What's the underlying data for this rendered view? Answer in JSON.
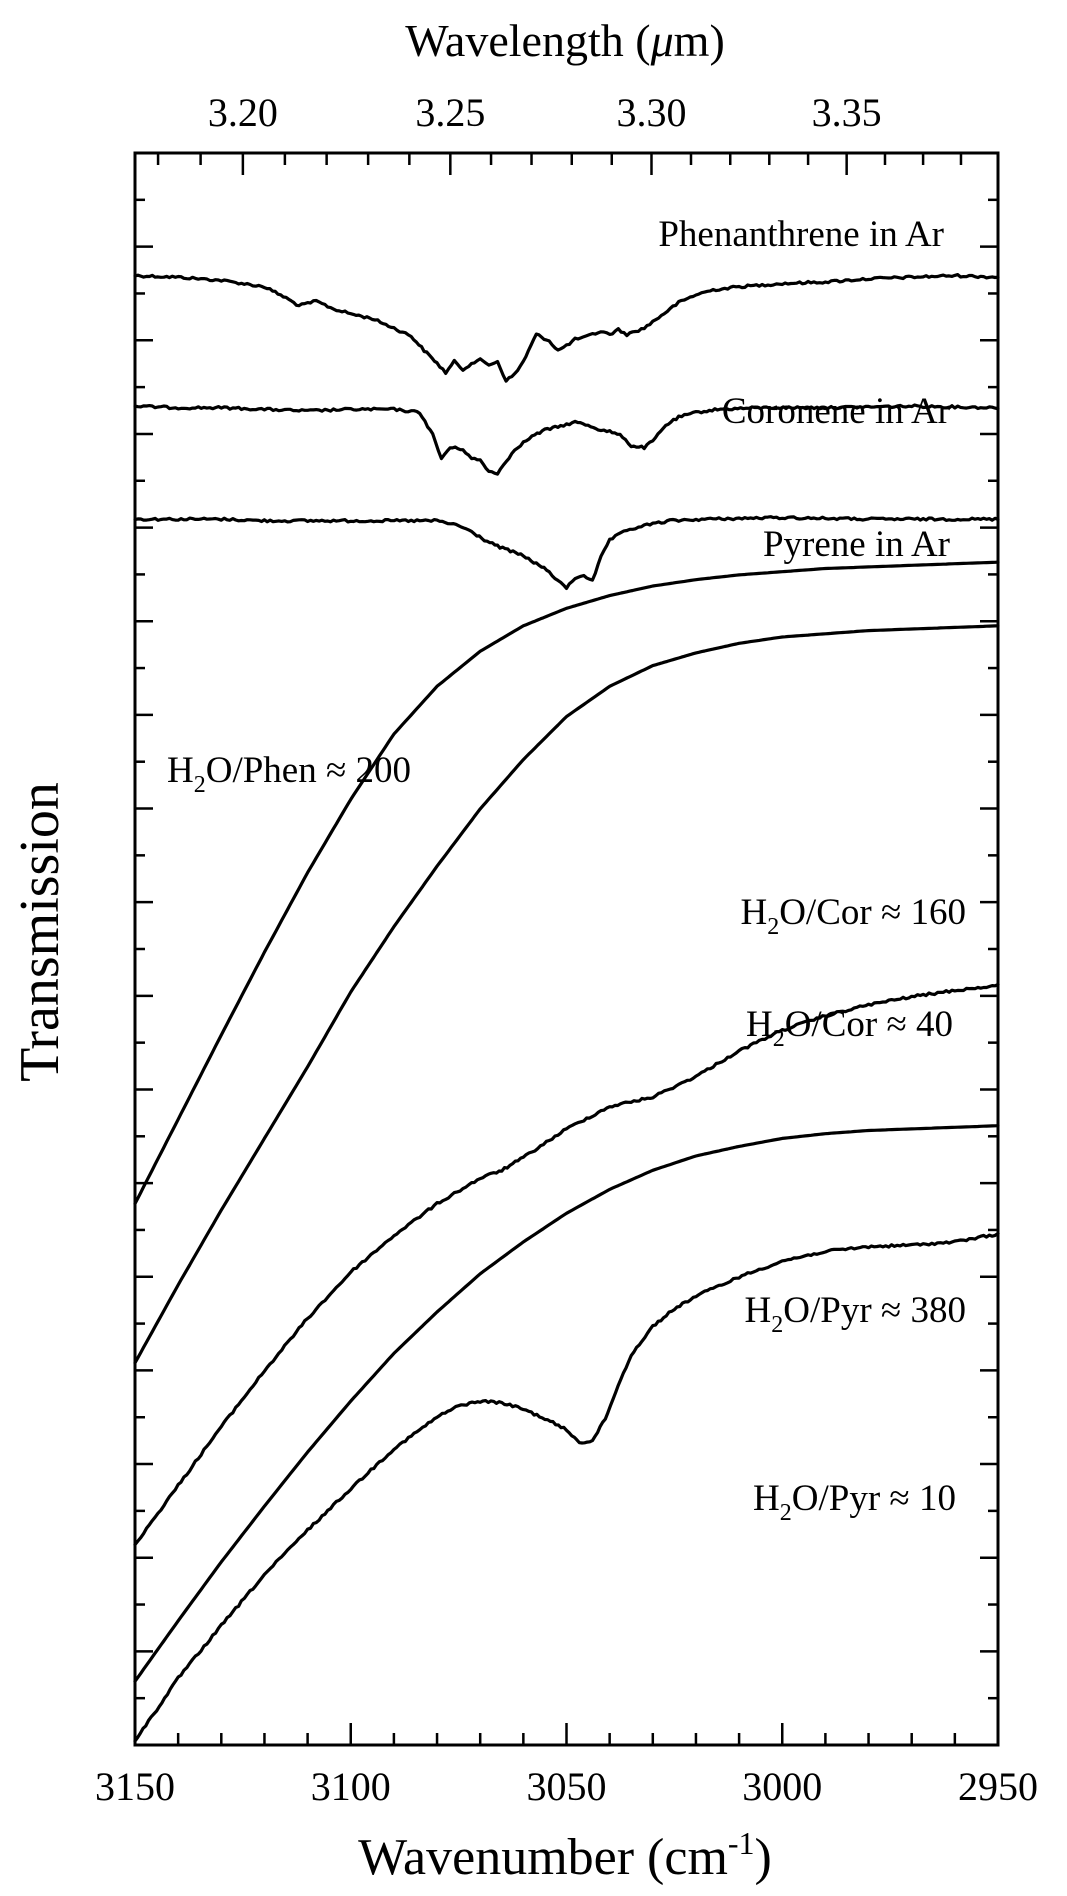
{
  "chart_data": {
    "type": "line",
    "xlabel": "Wavenumber (cm",
    "xlabel_sup": "-1",
    "xlabel_close": ")",
    "ylabel": "Transmission",
    "top_axis_label_pre": "Wavelength (",
    "top_axis_label_mu": "μ",
    "top_axis_label_post": "m)",
    "xlim": [
      3150,
      2950
    ],
    "x_reversed": true,
    "x_ticks": [
      3150,
      3100,
      3050,
      3000,
      2950
    ],
    "x_tick_labels": [
      "3150",
      "3100",
      "3050",
      "3000",
      "2950"
    ],
    "top_ticks": [
      3.2,
      3.25,
      3.3,
      3.35
    ],
    "top_tick_labels": [
      "3.20",
      "3.25",
      "3.30",
      "3.35"
    ],
    "ylim": [
      0,
      100
    ],
    "y_tick_labels_shown": false,
    "series": [
      {
        "name": "Phenanthrene in Ar",
        "style": "noisy",
        "points": [
          [
            3150,
            92.3
          ],
          [
            3140,
            92.2
          ],
          [
            3130,
            92.0
          ],
          [
            3120,
            91.6
          ],
          [
            3115,
            90.9
          ],
          [
            3112,
            90.4
          ],
          [
            3108,
            90.7
          ],
          [
            3104,
            90.2
          ],
          [
            3100,
            89.9
          ],
          [
            3095,
            89.6
          ],
          [
            3090,
            89.0
          ],
          [
            3086,
            88.5
          ],
          [
            3083,
            87.6
          ],
          [
            3080,
            86.8
          ],
          [
            3078,
            86.2
          ],
          [
            3076,
            86.9
          ],
          [
            3074,
            86.4
          ],
          [
            3072,
            86.8
          ],
          [
            3070,
            87.0
          ],
          [
            3068,
            86.7
          ],
          [
            3066,
            86.9
          ],
          [
            3064,
            85.7
          ],
          [
            3062,
            86.1
          ],
          [
            3060,
            86.9
          ],
          [
            3057,
            88.6
          ],
          [
            3054,
            88.2
          ],
          [
            3052,
            87.6
          ],
          [
            3050,
            87.9
          ],
          [
            3048,
            88.3
          ],
          [
            3046,
            88.4
          ],
          [
            3044,
            88.6
          ],
          [
            3042,
            88.8
          ],
          [
            3040,
            88.6
          ],
          [
            3038,
            88.9
          ],
          [
            3036,
            88.6
          ],
          [
            3034,
            88.8
          ],
          [
            3032,
            89.0
          ],
          [
            3028,
            89.8
          ],
          [
            3024,
            90.6
          ],
          [
            3020,
            91.1
          ],
          [
            3016,
            91.4
          ],
          [
            3010,
            91.6
          ],
          [
            3000,
            91.8
          ],
          [
            2990,
            91.9
          ],
          [
            2980,
            92.1
          ],
          [
            2970,
            92.2
          ],
          [
            2960,
            92.3
          ],
          [
            2950,
            92.2
          ]
        ]
      },
      {
        "name": "Coronene in Ar",
        "style": "noisy",
        "points": [
          [
            3150,
            84.1
          ],
          [
            3140,
            84.0
          ],
          [
            3130,
            84.0
          ],
          [
            3120,
            83.9
          ],
          [
            3110,
            83.8
          ],
          [
            3100,
            83.9
          ],
          [
            3090,
            83.9
          ],
          [
            3084,
            83.7
          ],
          [
            3081,
            82.3
          ],
          [
            3079,
            80.8
          ],
          [
            3077,
            81.5
          ],
          [
            3074,
            81.4
          ],
          [
            3072,
            80.8
          ],
          [
            3070,
            80.7
          ],
          [
            3068,
            80.0
          ],
          [
            3066,
            79.9
          ],
          [
            3064,
            80.6
          ],
          [
            3062,
            81.4
          ],
          [
            3058,
            82.2
          ],
          [
            3055,
            82.6
          ],
          [
            3052,
            82.8
          ],
          [
            3048,
            83.1
          ],
          [
            3045,
            82.9
          ],
          [
            3042,
            82.6
          ],
          [
            3040,
            82.5
          ],
          [
            3037,
            82.2
          ],
          [
            3035,
            81.6
          ],
          [
            3032,
            81.5
          ],
          [
            3030,
            81.9
          ],
          [
            3027,
            82.9
          ],
          [
            3024,
            83.4
          ],
          [
            3020,
            83.7
          ],
          [
            3015,
            83.9
          ],
          [
            3005,
            84.0
          ],
          [
            2990,
            84.0
          ],
          [
            2970,
            84.1
          ],
          [
            2950,
            84.0
          ]
        ]
      },
      {
        "name": "Pyrene in Ar",
        "style": "noisy",
        "points": [
          [
            3150,
            77.0
          ],
          [
            3140,
            77.0
          ],
          [
            3130,
            77.0
          ],
          [
            3120,
            76.9
          ],
          [
            3110,
            76.9
          ],
          [
            3100,
            76.9
          ],
          [
            3090,
            76.9
          ],
          [
            3080,
            76.9
          ],
          [
            3075,
            76.6
          ],
          [
            3072,
            76.2
          ],
          [
            3069,
            75.7
          ],
          [
            3066,
            75.3
          ],
          [
            3063,
            75.0
          ],
          [
            3060,
            74.7
          ],
          [
            3057,
            74.2
          ],
          [
            3054,
            73.7
          ],
          [
            3052,
            73.1
          ],
          [
            3050,
            72.7
          ],
          [
            3048,
            73.3
          ],
          [
            3046,
            73.5
          ],
          [
            3044,
            73.1
          ],
          [
            3042,
            74.6
          ],
          [
            3040,
            75.7
          ],
          [
            3036,
            76.3
          ],
          [
            3032,
            76.6
          ],
          [
            3026,
            76.9
          ],
          [
            3018,
            77.0
          ],
          [
            3000,
            77.1
          ],
          [
            2980,
            77.0
          ],
          [
            2950,
            77.0
          ]
        ]
      },
      {
        "name": "H₂O/Phen ≈ 200",
        "style": "smooth",
        "points": [
          [
            3150,
            34.0
          ],
          [
            3140,
            39.3
          ],
          [
            3130,
            44.6
          ],
          [
            3120,
            49.8
          ],
          [
            3110,
            54.8
          ],
          [
            3100,
            59.4
          ],
          [
            3090,
            63.5
          ],
          [
            3080,
            66.5
          ],
          [
            3070,
            68.7
          ],
          [
            3060,
            70.3
          ],
          [
            3050,
            71.4
          ],
          [
            3040,
            72.2
          ],
          [
            3030,
            72.8
          ],
          [
            3020,
            73.2
          ],
          [
            3010,
            73.5
          ],
          [
            3000,
            73.7
          ],
          [
            2990,
            73.9
          ],
          [
            2980,
            74.0
          ],
          [
            2970,
            74.1
          ],
          [
            2960,
            74.2
          ],
          [
            2950,
            74.3
          ]
        ]
      },
      {
        "name": "H₂O/Cor ≈ 160",
        "style": "smooth",
        "points": [
          [
            3150,
            24.0
          ],
          [
            3140,
            28.9
          ],
          [
            3130,
            33.6
          ],
          [
            3120,
            38.1
          ],
          [
            3110,
            42.6
          ],
          [
            3100,
            47.3
          ],
          [
            3090,
            51.4
          ],
          [
            3080,
            55.2
          ],
          [
            3070,
            58.8
          ],
          [
            3060,
            61.9
          ],
          [
            3050,
            64.6
          ],
          [
            3040,
            66.5
          ],
          [
            3030,
            67.8
          ],
          [
            3020,
            68.6
          ],
          [
            3010,
            69.2
          ],
          [
            3000,
            69.6
          ],
          [
            2990,
            69.8
          ],
          [
            2980,
            70.0
          ],
          [
            2970,
            70.1
          ],
          [
            2960,
            70.2
          ],
          [
            2950,
            70.3
          ]
        ]
      },
      {
        "name": "H₂O/Cor ≈ 40",
        "style": "noisy",
        "points": [
          [
            3150,
            12.6
          ],
          [
            3140,
            16.3
          ],
          [
            3130,
            20.0
          ],
          [
            3120,
            23.5
          ],
          [
            3110,
            26.8
          ],
          [
            3100,
            29.7
          ],
          [
            3090,
            32.0
          ],
          [
            3080,
            34.0
          ],
          [
            3070,
            35.6
          ],
          [
            3065,
            36.1
          ],
          [
            3060,
            36.9
          ],
          [
            3050,
            38.7
          ],
          [
            3040,
            40.1
          ],
          [
            3035,
            40.4
          ],
          [
            3030,
            40.7
          ],
          [
            3020,
            42.0
          ],
          [
            3010,
            43.6
          ],
          [
            3000,
            44.9
          ],
          [
            2990,
            45.8
          ],
          [
            2980,
            46.5
          ],
          [
            2970,
            47.0
          ],
          [
            2960,
            47.4
          ],
          [
            2950,
            47.7
          ]
        ]
      },
      {
        "name": "H₂O/Pyr ≈ 380",
        "style": "smooth",
        "points": [
          [
            3150,
            4.0
          ],
          [
            3140,
            7.8
          ],
          [
            3130,
            11.5
          ],
          [
            3120,
            15.0
          ],
          [
            3110,
            18.4
          ],
          [
            3100,
            21.6
          ],
          [
            3090,
            24.6
          ],
          [
            3080,
            27.2
          ],
          [
            3070,
            29.6
          ],
          [
            3060,
            31.6
          ],
          [
            3050,
            33.4
          ],
          [
            3040,
            34.9
          ],
          [
            3030,
            36.1
          ],
          [
            3020,
            37.0
          ],
          [
            3010,
            37.6
          ],
          [
            3000,
            38.1
          ],
          [
            2990,
            38.4
          ],
          [
            2980,
            38.6
          ],
          [
            2970,
            38.7
          ],
          [
            2960,
            38.8
          ],
          [
            2950,
            38.9
          ]
        ]
      },
      {
        "name": "H₂O/Pyr ≈ 10",
        "style": "noisy",
        "points": [
          [
            3150,
            0.3
          ],
          [
            3145,
            2.2
          ],
          [
            3140,
            4.2
          ],
          [
            3130,
            7.5
          ],
          [
            3120,
            10.7
          ],
          [
            3110,
            13.5
          ],
          [
            3100,
            16.1
          ],
          [
            3090,
            18.6
          ],
          [
            3080,
            20.6
          ],
          [
            3075,
            21.3
          ],
          [
            3070,
            21.6
          ],
          [
            3065,
            21.5
          ],
          [
            3060,
            21.1
          ],
          [
            3055,
            20.5
          ],
          [
            3050,
            19.8
          ],
          [
            3047,
            19.0
          ],
          [
            3044,
            19.1
          ],
          [
            3041,
            20.5
          ],
          [
            3038,
            22.6
          ],
          [
            3035,
            24.5
          ],
          [
            3030,
            26.3
          ],
          [
            3025,
            27.4
          ],
          [
            3020,
            28.2
          ],
          [
            3010,
            29.4
          ],
          [
            3000,
            30.4
          ],
          [
            2990,
            31.0
          ],
          [
            2980,
            31.3
          ],
          [
            2970,
            31.4
          ],
          [
            2960,
            31.6
          ],
          [
            2950,
            32.1
          ]
        ]
      }
    ],
    "annotations": [
      {
        "id": "phen-ar",
        "text": "Phenanthrene in Ar"
      },
      {
        "id": "cor-ar",
        "text": "Coronene in Ar"
      },
      {
        "id": "pyr-ar",
        "text": "Pyrene in Ar"
      },
      {
        "id": "phen-200",
        "pre": "H",
        "sub": "2",
        "post": "O/Phen ≈ 200"
      },
      {
        "id": "cor-160",
        "pre": "H",
        "sub": "2",
        "post": "O/Cor ≈ 160"
      },
      {
        "id": "cor-40",
        "pre": "H",
        "sub": "2",
        "post": "O/Cor ≈ 40"
      },
      {
        "id": "pyr-380",
        "pre": "H",
        "sub": "2",
        "post": "O/Pyr ≈ 380"
      },
      {
        "id": "pyr-10",
        "pre": "H",
        "sub": "2",
        "post": "O/Pyr ≈ 10"
      }
    ],
    "grid": false,
    "legend": "none"
  }
}
